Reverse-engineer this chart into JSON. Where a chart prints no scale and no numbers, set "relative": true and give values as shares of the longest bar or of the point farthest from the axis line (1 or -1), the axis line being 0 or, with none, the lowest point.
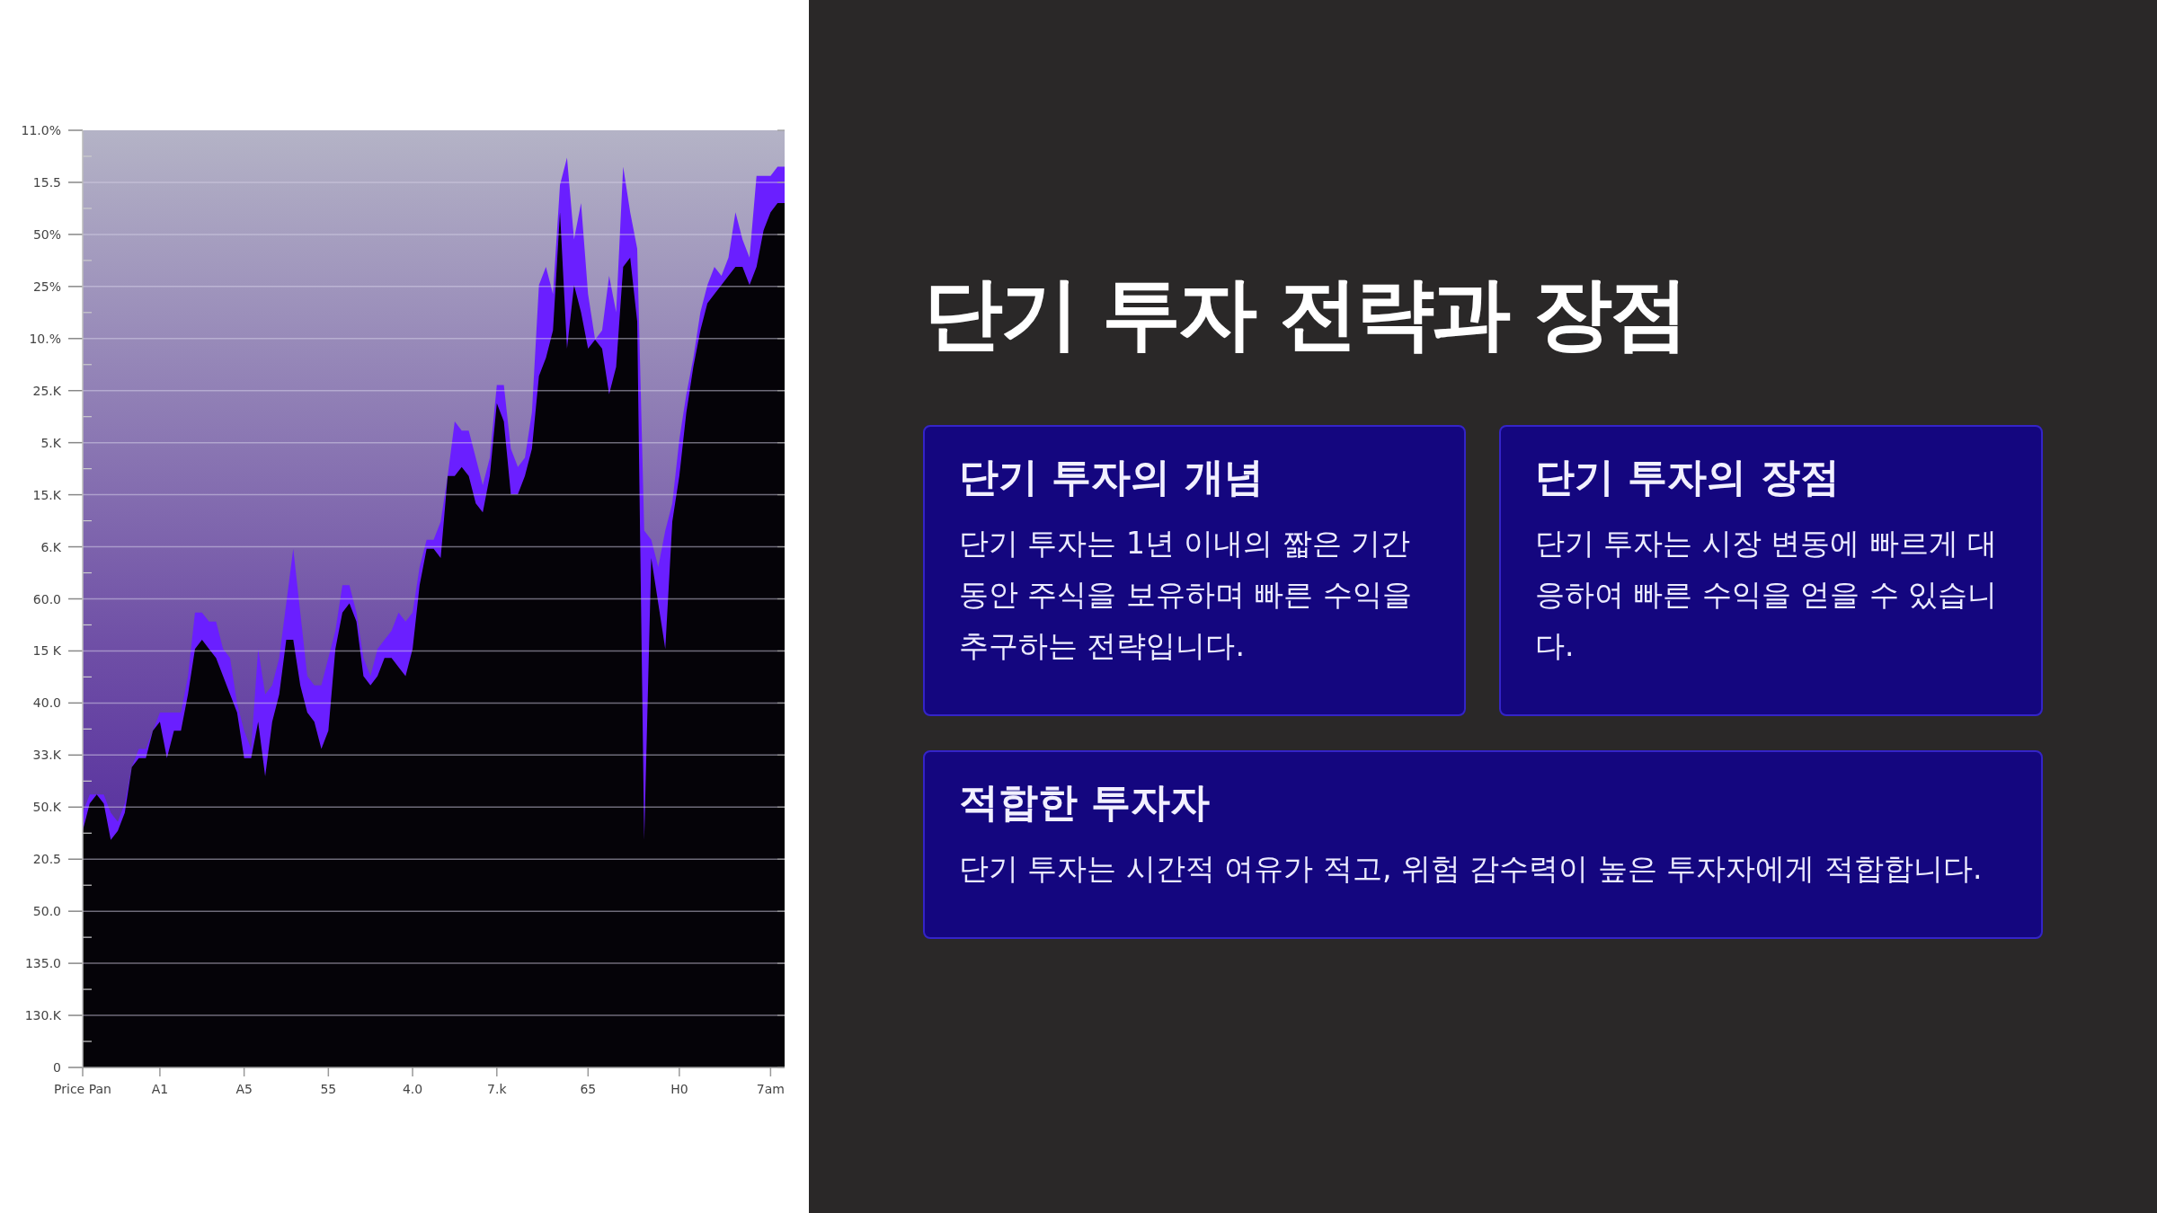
{
  "chart_data": [
    {
      "type": "area",
      "relative": true,
      "grid": "y",
      "categories": [
        "Price Pan",
        null,
        null,
        null,
        null,
        null,
        null,
        null,
        null,
        null,
        null,
        "A1",
        null,
        null,
        null,
        null,
        null,
        null,
        null,
        null,
        null,
        null,
        null,
        "A5",
        null,
        null,
        null,
        null,
        null,
        null,
        null,
        null,
        null,
        null,
        null,
        "55",
        null,
        null,
        null,
        null,
        null,
        null,
        null,
        null,
        null,
        null,
        null,
        "4.0",
        null,
        null,
        null,
        null,
        null,
        null,
        null,
        null,
        null,
        null,
        null,
        "7.k",
        null,
        null,
        null,
        null,
        null,
        null,
        null,
        null,
        null,
        null,
        null,
        null,
        "65",
        null,
        null,
        null,
        null,
        null,
        null,
        null,
        null,
        null,
        null,
        null,
        null,
        "H0",
        null,
        null,
        null,
        null,
        null,
        null,
        null,
        null,
        null,
        null,
        null,
        null,
        "7am",
        null,
        null
      ],
      "annotations": [
        "11.0%",
        "15.5",
        "50%",
        "25%",
        "10.%",
        "25.K",
        "5.K",
        "15.K",
        "6.K",
        "60.0",
        "15 K",
        "40.0",
        "33.K",
        "50.K",
        "20.5",
        "50.0",
        "135.0",
        "130.K",
        "0"
      ],
      "series": [
        {
          "color": "#6a1fff",
          "values": [
            0.28,
            0.3,
            0.3,
            0.3,
            0.28,
            0.27,
            0.29,
            0.33,
            0.35,
            0.35,
            0.37,
            0.39,
            0.39,
            0.39,
            0.39,
            0.43,
            0.5,
            0.5,
            0.49,
            0.49,
            0.46,
            0.45,
            0.4,
            0.37,
            0.35,
            0.46,
            0.41,
            0.42,
            0.45,
            0.51,
            0.57,
            0.5,
            0.43,
            0.42,
            0.42,
            0.45,
            0.48,
            0.53,
            0.53,
            0.5,
            0.45,
            0.43,
            0.46,
            0.47,
            0.48,
            0.5,
            0.49,
            0.5,
            0.55,
            0.58,
            0.58,
            0.6,
            0.65,
            0.71,
            0.7,
            0.7,
            0.67,
            0.64,
            0.67,
            0.75,
            0.75,
            0.68,
            0.66,
            0.67,
            0.72,
            0.86,
            0.88,
            0.85,
            0.97,
            1,
            0.91,
            0.95,
            0.85,
            0.8,
            0.81,
            0.87,
            0.83,
            0.99,
            0.94,
            0.9,
            0.59,
            0.58,
            0.55,
            0.59,
            0.62,
            0.69,
            0.74,
            0.78,
            0.83,
            0.86,
            0.88,
            0.87,
            0.89,
            0.94,
            0.91,
            0.89,
            0.98,
            0.98,
            0.98,
            0.99,
            0.99
          ]
        },
        {
          "color": "#050308",
          "values": [
            0.26,
            0.29,
            0.3,
            0.29,
            0.25,
            0.26,
            0.28,
            0.33,
            0.34,
            0.34,
            0.37,
            0.38,
            0.34,
            0.37,
            0.37,
            0.41,
            0.46,
            0.47,
            0.46,
            0.45,
            0.43,
            0.41,
            0.39,
            0.34,
            0.34,
            0.38,
            0.32,
            0.38,
            0.41,
            0.47,
            0.47,
            0.42,
            0.39,
            0.38,
            0.35,
            0.37,
            0.46,
            0.5,
            0.51,
            0.49,
            0.43,
            0.42,
            0.43,
            0.45,
            0.45,
            0.44,
            0.43,
            0.46,
            0.53,
            0.57,
            0.57,
            0.56,
            0.65,
            0.65,
            0.66,
            0.65,
            0.62,
            0.61,
            0.65,
            0.73,
            0.71,
            0.63,
            0.63,
            0.65,
            0.68,
            0.76,
            0.78,
            0.81,
            0.94,
            0.79,
            0.86,
            0.83,
            0.79,
            0.8,
            0.79,
            0.74,
            0.77,
            0.88,
            0.89,
            0.82,
            0.25,
            0.56,
            0.51,
            0.46,
            0.6,
            0.65,
            0.72,
            0.77,
            0.81,
            0.84,
            0.85,
            0.86,
            0.87,
            0.88,
            0.88,
            0.86,
            0.88,
            0.92,
            0.94,
            0.95,
            0.95
          ]
        }
      ]
    },
    {
      "type": "other",
      "title": "단기 투자 전략과 장점",
      "annotations": [
        "단기 투자의 개념",
        "단기 투자는 1년 이내의 짧은 기간 동안 주식을 보유하며 빠른 수익을 추구하는 전략입니다.",
        "단기 투자의 장점",
        "단기 투자는 시장 변동에 빠르게 대응하여 빠른 수익을 얻을 수 있습니다.",
        "적합한 투자자",
        "단기 투자는 시간적 여유가 적고, 위험 감수력이 높은 투자자에게 적합합니다."
      ]
    }
  ]
}
